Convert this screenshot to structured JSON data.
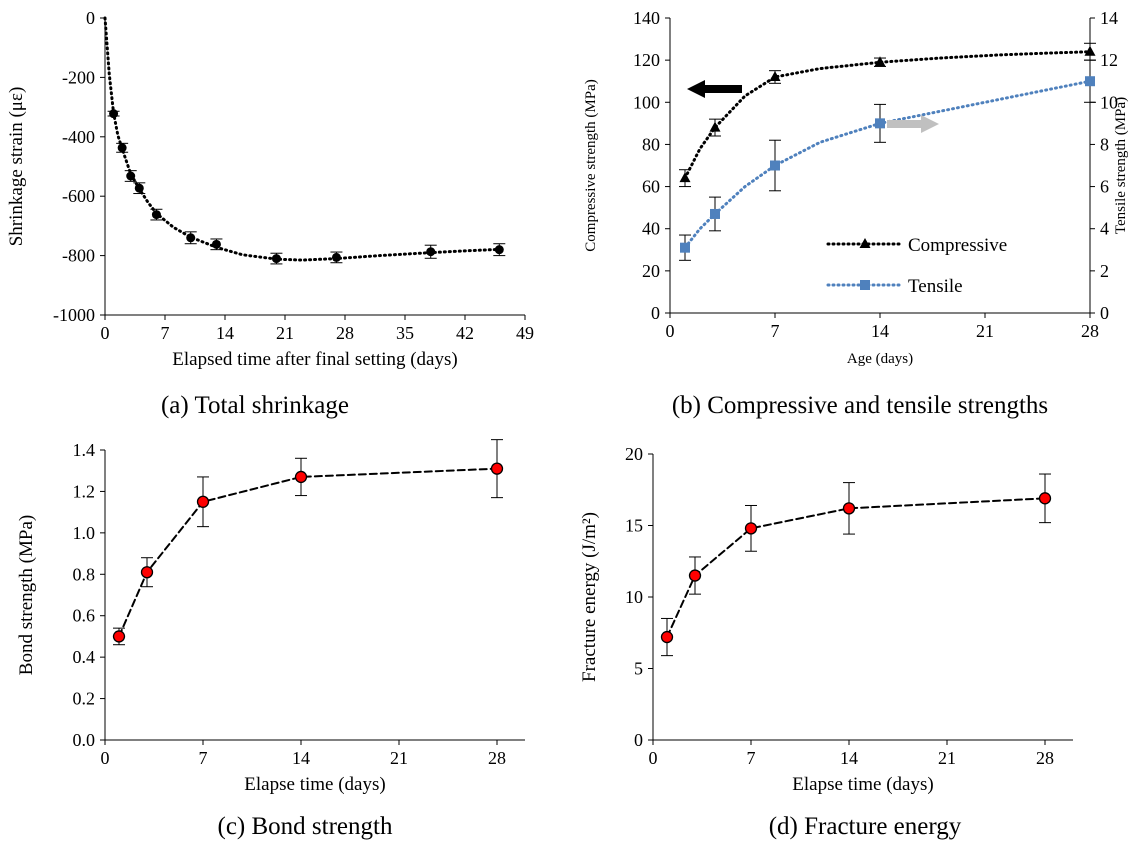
{
  "chart_data": [
    {
      "id": "a",
      "type": "scatter",
      "caption": "(a) Total shrinkage",
      "xlabel": "Elapsed time after final setting (days)",
      "ylabel": "Shrinkage strain (με)",
      "xlim": [
        0,
        49
      ],
      "ylim": [
        -1000,
        0
      ],
      "xticks": [
        0,
        7,
        14,
        21,
        28,
        35,
        42,
        49
      ],
      "yticks": [
        0,
        -200,
        -400,
        -600,
        -800,
        -1000
      ],
      "grid": false,
      "series": [
        {
          "marker": "circle",
          "color": "#000000",
          "line": "dotted",
          "x": [
            1,
            2,
            3,
            4,
            6,
            10,
            13,
            20,
            27,
            38,
            46
          ],
          "y": [
            -322,
            -437,
            -532,
            -573,
            -662,
            -740,
            -762,
            -810,
            -806,
            -787,
            -780
          ],
          "err": [
            8,
            15,
            18,
            18,
            18,
            20,
            18,
            18,
            18,
            22,
            20
          ]
        }
      ],
      "curve": {
        "x": [
          0,
          0.5,
          1,
          1.5,
          2,
          3,
          4,
          5,
          6,
          8,
          10,
          13,
          16,
          20,
          23,
          27,
          32,
          38,
          42,
          46
        ],
        "y": [
          0,
          -190,
          -320,
          -395,
          -440,
          -525,
          -575,
          -620,
          -658,
          -705,
          -738,
          -772,
          -797,
          -812,
          -815,
          -810,
          -800,
          -790,
          -784,
          -779
        ]
      }
    },
    {
      "id": "b",
      "type": "line",
      "caption": "(b) Compressive and tensile strengths",
      "xlabel": "Age (days)",
      "ylabel": "Compressive strength (MPa)",
      "y2label": "Tensile strength (MPa)",
      "xlim": [
        0,
        28
      ],
      "ylim": [
        0,
        140
      ],
      "y2lim": [
        0,
        14
      ],
      "xticks": [
        0,
        7,
        14,
        21,
        28
      ],
      "yticks": [
        0,
        20,
        40,
        60,
        80,
        100,
        120,
        140
      ],
      "y2ticks": [
        0,
        2,
        4,
        6,
        8,
        10,
        12,
        14
      ],
      "grid": false,
      "legend_position": "bottom-right",
      "arrow_colors": [
        "#000000",
        "#c0c0c0"
      ],
      "series": [
        {
          "name": "Compressive",
          "axis": "left",
          "marker": "triangle",
          "color": "#000000",
          "x": [
            1,
            3,
            7,
            14,
            28
          ],
          "y": [
            64,
            88,
            112,
            119,
            124
          ],
          "err": [
            4,
            4,
            3,
            2,
            4
          ],
          "curve": {
            "x": [
              1,
              2,
              3,
              5,
              7,
              10,
              14,
              18,
              22,
              25,
              28
            ],
            "y": [
              64,
              78,
              88,
              103,
              112,
              116,
              119,
              121,
              122.5,
              123.3,
              124
            ]
          }
        },
        {
          "name": "Tensile",
          "axis": "right",
          "marker": "square",
          "color": "#4f81bd",
          "x": [
            1,
            3,
            7,
            14,
            28
          ],
          "y": [
            3.1,
            4.7,
            7.0,
            9.0,
            11.0
          ],
          "err": [
            0.6,
            0.8,
            1.2,
            0.9,
            1.0
          ],
          "curve": {
            "x": [
              1,
              2,
              3,
              5,
              7,
              10,
              14,
              21,
              28
            ],
            "y": [
              3.1,
              4.0,
              4.7,
              6.0,
              7.0,
              8.1,
              9.0,
              10.0,
              11.0
            ]
          }
        }
      ]
    },
    {
      "id": "c",
      "type": "line",
      "caption": "(c) Bond strength",
      "xlabel": "Elapse time (days)",
      "ylabel": "Bond strength (MPa)",
      "xlim": [
        0,
        30
      ],
      "ylim": [
        0,
        1.4
      ],
      "xticks": [
        0,
        7,
        14,
        21,
        28
      ],
      "ytick_labels": [
        "0.0",
        "0.2",
        "0.4",
        "0.6",
        "0.8",
        "1.0",
        "1.2",
        "1.4"
      ],
      "grid": false,
      "series": [
        {
          "marker": "circle",
          "color": "#ff0000",
          "line": "dashed",
          "x": [
            1,
            3,
            7,
            14,
            28
          ],
          "y": [
            0.5,
            0.81,
            1.15,
            1.27,
            1.31
          ],
          "err": [
            0.04,
            0.07,
            0.12,
            0.09,
            0.14
          ]
        }
      ]
    },
    {
      "id": "d",
      "type": "line",
      "caption": "(d) Fracture energy",
      "xlabel": "Elapse time (days)",
      "ylabel": "Fracture energy (J/m²)",
      "xlim": [
        0,
        30
      ],
      "ylim": [
        0,
        20
      ],
      "xticks": [
        0,
        7,
        14,
        21,
        28
      ],
      "yticks": [
        0,
        5,
        10,
        15,
        20
      ],
      "grid": false,
      "series": [
        {
          "marker": "circle",
          "color": "#ff0000",
          "line": "dashed",
          "x": [
            1,
            3,
            7,
            14,
            28
          ],
          "y": [
            7.2,
            11.5,
            14.8,
            16.2,
            16.9
          ],
          "err": [
            1.3,
            1.3,
            1.6,
            1.8,
            1.7
          ]
        }
      ]
    }
  ]
}
